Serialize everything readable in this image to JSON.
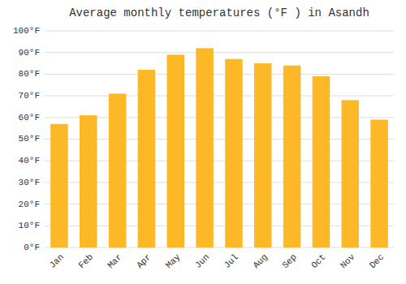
{
  "chart_data": {
    "type": "bar",
    "title": "Average monthly temperatures (°F ) in Asandh",
    "categories": [
      "Jan",
      "Feb",
      "Mar",
      "Apr",
      "May",
      "Jun",
      "Jul",
      "Aug",
      "Sep",
      "Oct",
      "Nov",
      "Dec"
    ],
    "values": [
      57,
      61,
      71,
      82,
      89,
      92,
      87,
      85,
      84,
      79,
      68,
      59
    ],
    "color": "#FDB827",
    "ylim": [
      0,
      100
    ],
    "yticks": [
      {
        "value": 0,
        "label": "0°F"
      },
      {
        "value": 10,
        "label": "10°F"
      },
      {
        "value": 20,
        "label": "20°F"
      },
      {
        "value": 30,
        "label": "30°F"
      },
      {
        "value": 40,
        "label": "40°F"
      },
      {
        "value": 50,
        "label": "50°F"
      },
      {
        "value": 60,
        "label": "60°F"
      },
      {
        "value": 70,
        "label": "70°F"
      },
      {
        "value": 80,
        "label": "80°F"
      },
      {
        "value": 90,
        "label": "90°F"
      },
      {
        "value": 100,
        "label": "100°F"
      }
    ],
    "grid": true
  }
}
